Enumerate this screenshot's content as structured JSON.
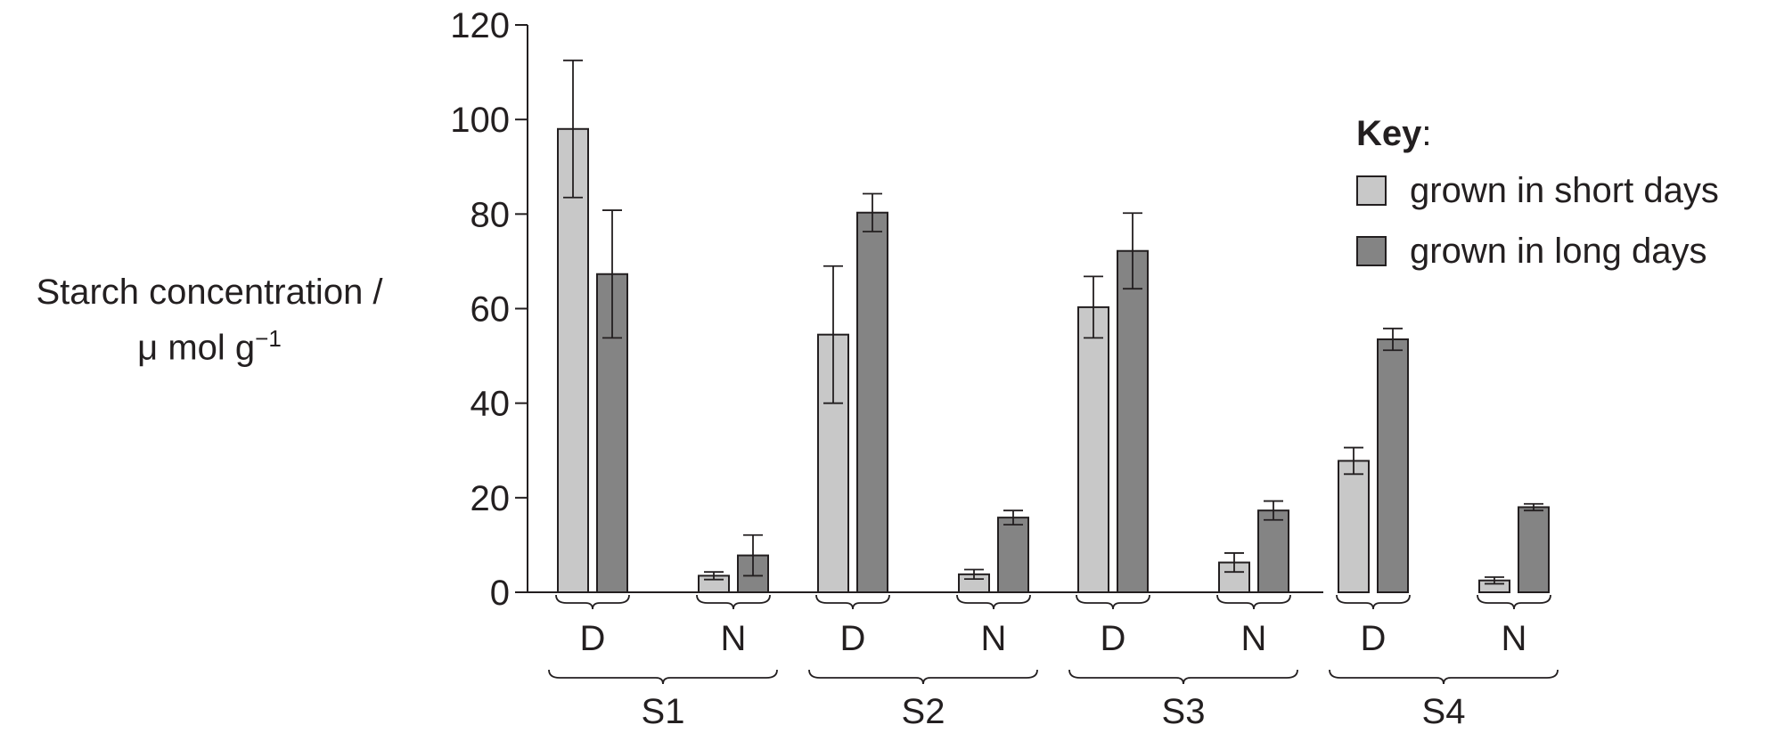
{
  "chart_data": {
    "type": "bar",
    "ylabel_line1": "Starch concentration /",
    "ylabel_unit": "μ mol g",
    "ylabel_sup": "−1",
    "ylim": [
      0,
      120
    ],
    "yticks": [
      0,
      20,
      40,
      60,
      80,
      100,
      120
    ],
    "groups": [
      "S1",
      "S2",
      "S3",
      "S4"
    ],
    "subgroups": [
      "D",
      "N"
    ],
    "series": [
      {
        "name": "grown in short days",
        "color": "#c8c8c8",
        "values": [
          98,
          3.5,
          54.5,
          3.8,
          60.3,
          6.3,
          27.8,
          2.5
        ],
        "errors": [
          14.5,
          0.8,
          14.5,
          1,
          6.5,
          2,
          2.8,
          0.7
        ]
      },
      {
        "name": "grown in long days",
        "color": "#848484",
        "values": [
          67.3,
          7.8,
          80.3,
          15.8,
          72.2,
          17.3,
          53.5,
          18
        ],
        "errors": [
          13.5,
          4.3,
          4,
          1.5,
          8,
          2,
          2.3,
          0.7
        ]
      }
    ]
  },
  "key": {
    "title": "Key",
    "colon": ":",
    "items": [
      {
        "label": "grown in short days",
        "color": "#c8c8c8"
      },
      {
        "label": "grown in long days",
        "color": "#848484"
      }
    ]
  }
}
